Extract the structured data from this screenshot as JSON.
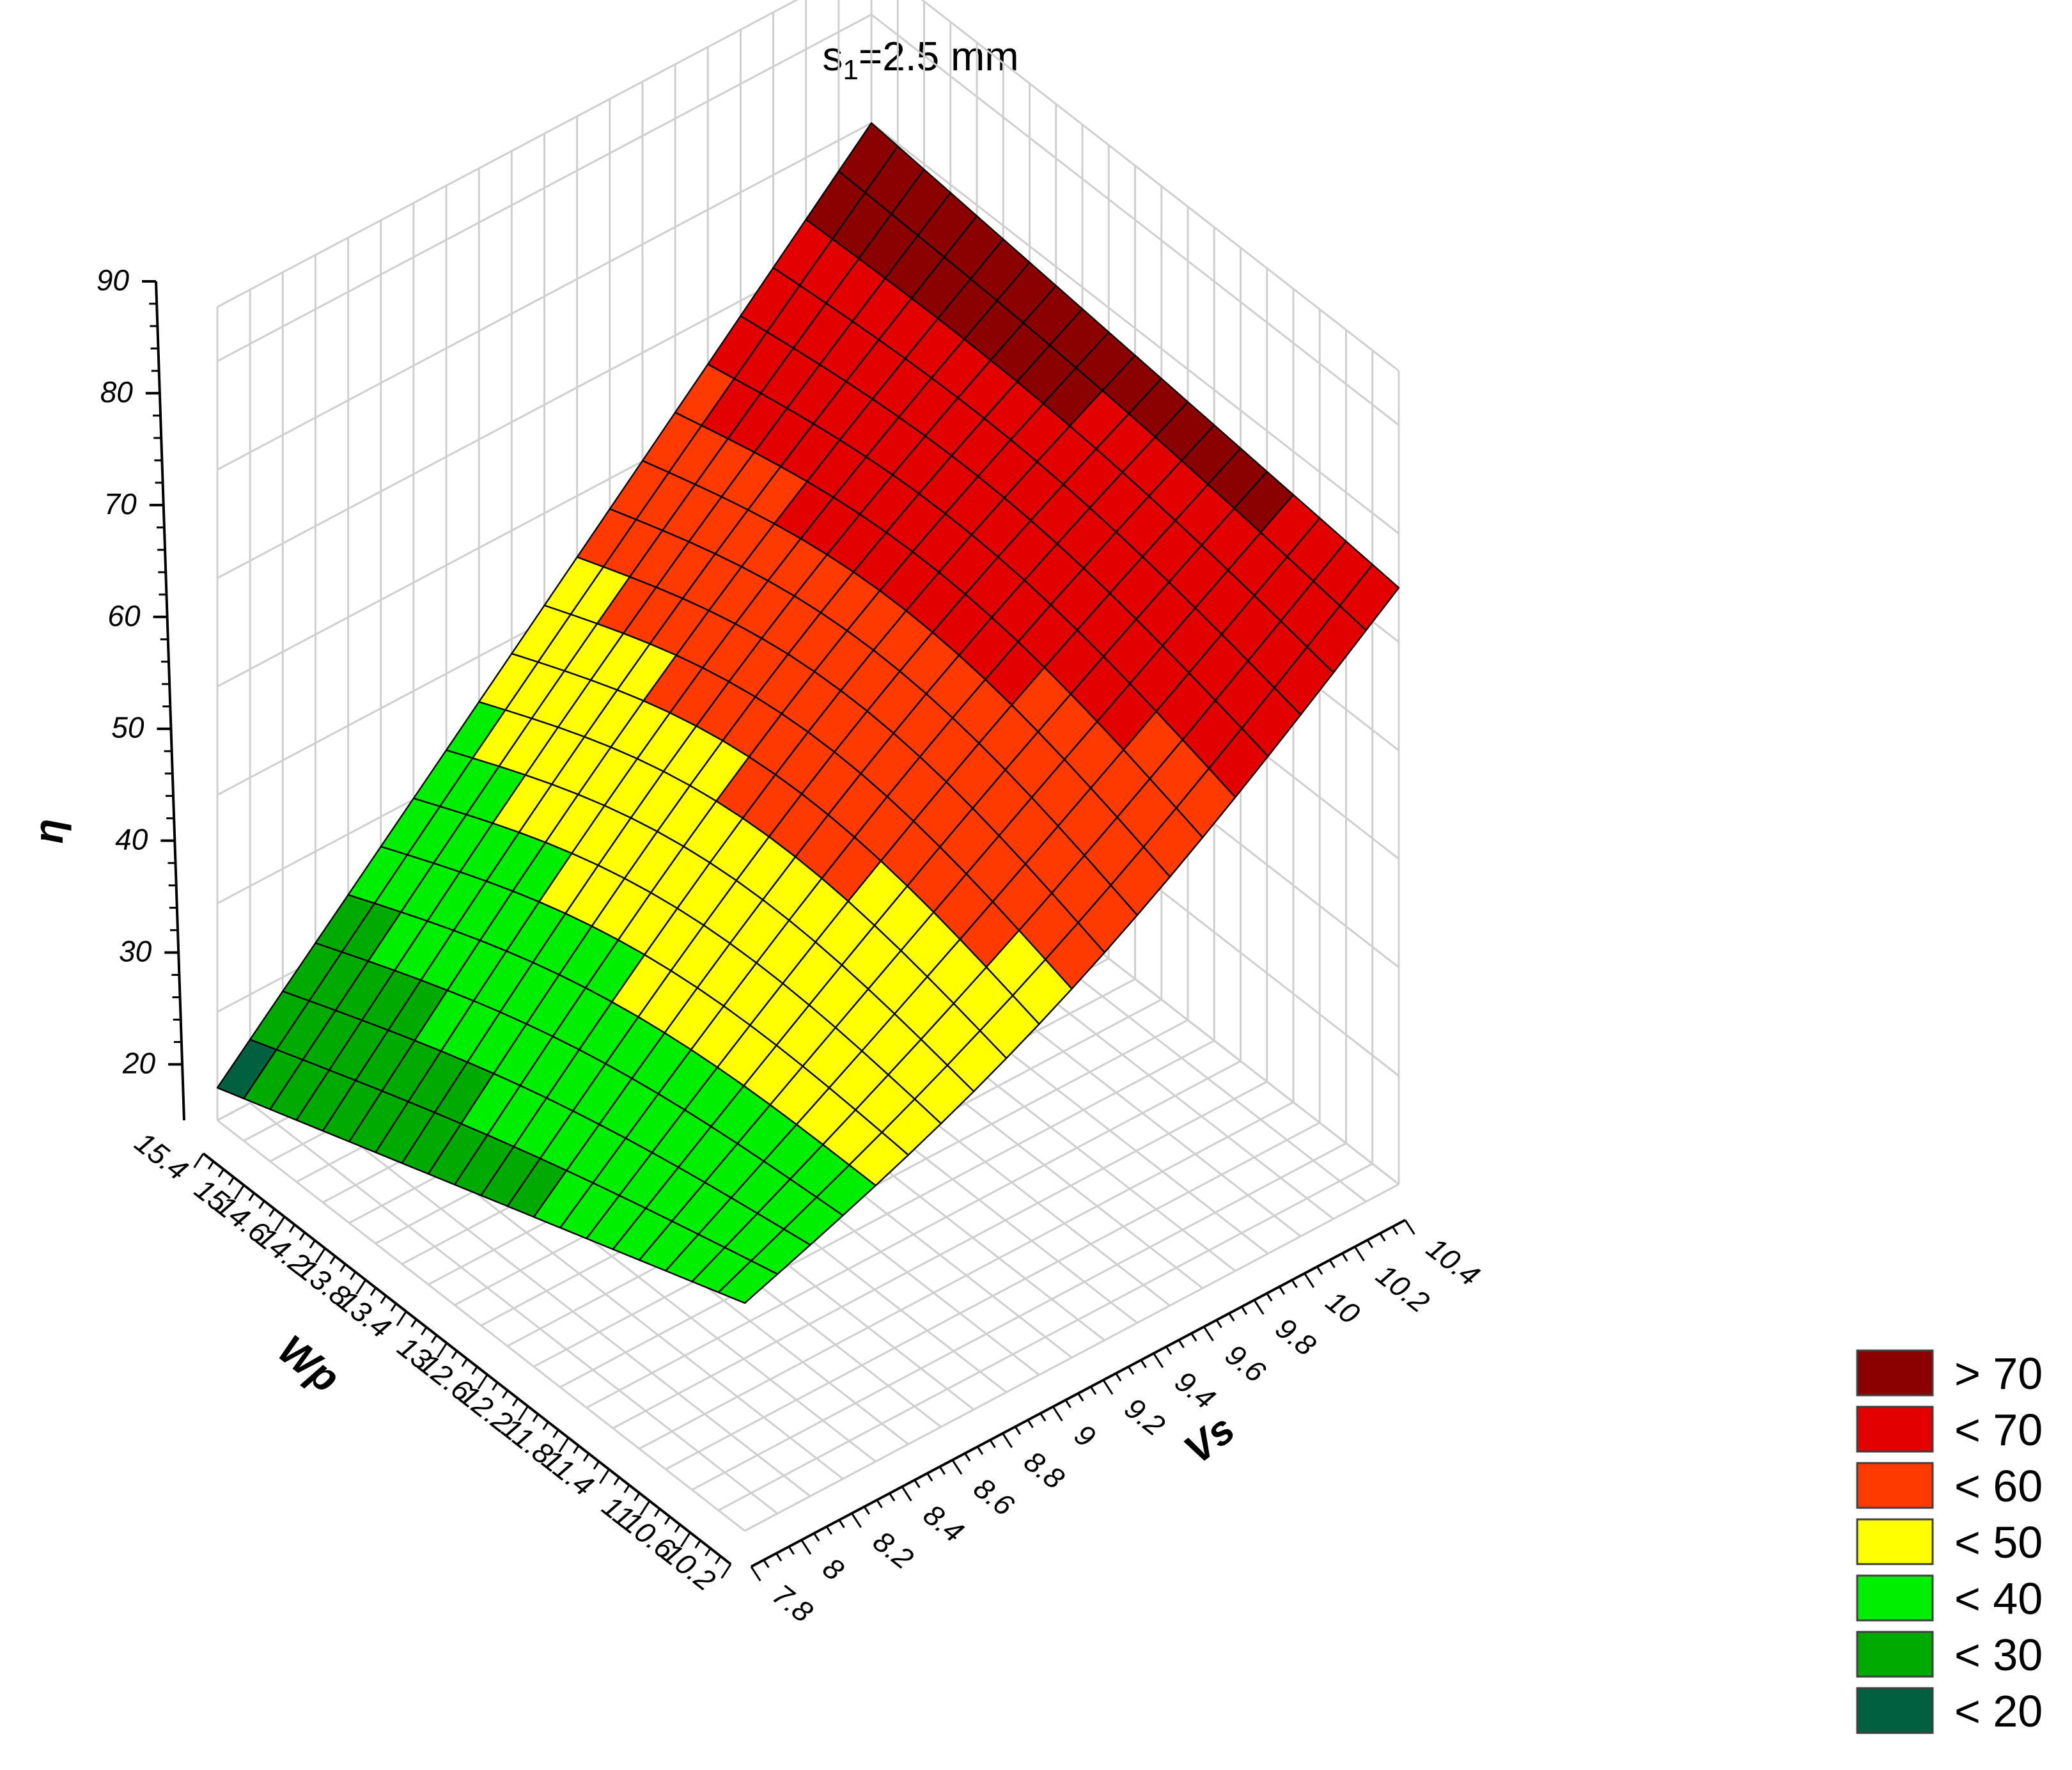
{
  "chart_data": {
    "type": "surface",
    "title_main": "s",
    "title_sub": "1",
    "title_rest": "=2.5 mm",
    "x_axis": {
      "label": "Vs",
      "range": [
        7.8,
        10.4
      ],
      "ticks": [
        "7.8",
        "8",
        "8.2",
        "8.4",
        "8.6",
        "8.8",
        "9",
        "9.2",
        "9.4",
        "9.6",
        "9.8",
        "10",
        "10.2",
        "10.4"
      ]
    },
    "y_axis": {
      "label": "Wp",
      "range": [
        10.2,
        15.4
      ],
      "ticks": [
        "10.2",
        "10.6",
        "11",
        "11.4",
        "11.8",
        "12.2",
        "12.6",
        "13",
        "13.4",
        "13.8",
        "14.2",
        "14.6",
        "15",
        "15.4"
      ]
    },
    "z_axis": {
      "label": "η",
      "range": [
        15,
        90
      ],
      "ticks": [
        "20",
        "30",
        "40",
        "50",
        "60",
        "70",
        "80",
        "90"
      ]
    },
    "surface_corners": [
      {
        "vs": 7.8,
        "wp": 10.2,
        "eta": 36
      },
      {
        "vs": 7.8,
        "wp": 15.4,
        "eta": 18
      },
      {
        "vs": 10.4,
        "wp": 10.2,
        "eta": 70
      },
      {
        "vs": 10.4,
        "wp": 15.4,
        "eta": 75
      }
    ],
    "mesh_divisions": 20,
    "grid": true,
    "legend_position": "bottom-right",
    "legend": [
      {
        "label": "> 70",
        "color": "#8b0000"
      },
      {
        "label": "< 70",
        "color": "#e30000"
      },
      {
        "label": "< 60",
        "color": "#ff3a00"
      },
      {
        "label": "< 50",
        "color": "#ffff00"
      },
      {
        "label": "< 40",
        "color": "#00ee00"
      },
      {
        "label": "< 30",
        "color": "#00aa00"
      },
      {
        "label": "< 20",
        "color": "#006040"
      }
    ]
  }
}
